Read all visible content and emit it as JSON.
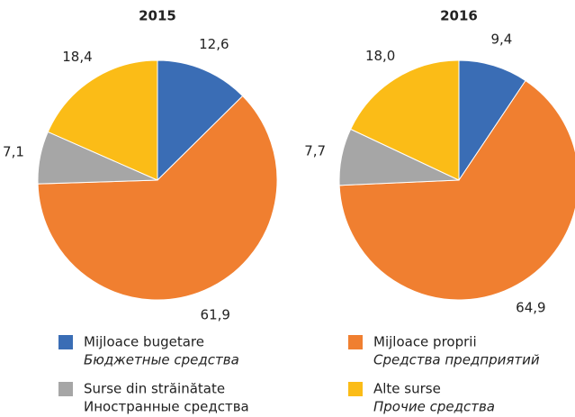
{
  "chart_data": [
    {
      "type": "pie",
      "title": "2015",
      "values": [
        12.6,
        61.9,
        7.1,
        18.4
      ],
      "value_labels": [
        "12,6",
        "61,9",
        "7,1",
        "18,4"
      ]
    },
    {
      "type": "pie",
      "title": "2016",
      "values": [
        9.4,
        64.9,
        7.7,
        18.0
      ],
      "value_labels": [
        "9,4",
        "64,9",
        "7,7",
        "18,0"
      ]
    }
  ],
  "legend": {
    "items": [
      {
        "name": "Mijloace bugetare",
        "translation": "Бюджетные средства",
        "color": "#3a6db5"
      },
      {
        "name": "Mijloace proprii",
        "translation": "Средства предприятий",
        "color": "#f07f30"
      },
      {
        "name": "Surse din străinătate",
        "translation": "Иностранные средства",
        "color": "#a6a6a6"
      },
      {
        "name": "Alte surse",
        "translation": "Прочие средства",
        "color": "#fbbc17"
      }
    ]
  }
}
